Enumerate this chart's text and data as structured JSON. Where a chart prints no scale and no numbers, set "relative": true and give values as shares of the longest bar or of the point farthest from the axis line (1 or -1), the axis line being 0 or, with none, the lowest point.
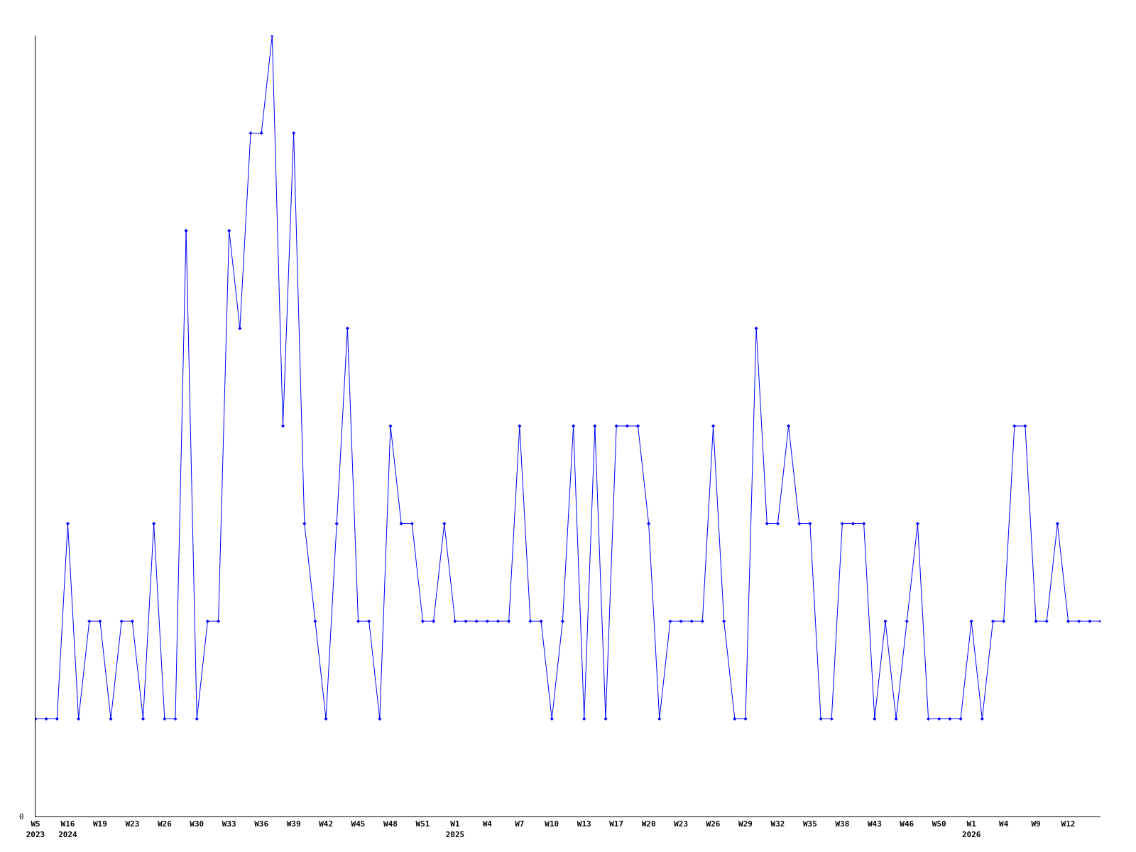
{
  "chart_data": {
    "type": "line",
    "relative": true,
    "color": "#0000ff",
    "marker": "diamond",
    "line_style": "solid",
    "grid": false,
    "legend": false,
    "annotations": [
      "0"
    ],
    "categories": [
      "W5\n2023",
      null,
      null,
      "W16\n2024",
      null,
      null,
      "W19",
      null,
      null,
      "W23",
      null,
      null,
      "W26",
      null,
      null,
      "W30",
      null,
      null,
      "W33",
      null,
      null,
      "W36",
      null,
      null,
      "W39",
      null,
      null,
      "W42",
      null,
      null,
      "W45",
      null,
      null,
      "W48",
      null,
      null,
      "W51",
      null,
      null,
      "W1\n2025",
      null,
      null,
      "W4",
      null,
      null,
      "W7",
      null,
      null,
      "W10",
      null,
      null,
      "W13",
      null,
      null,
      "W17",
      null,
      null,
      "W20",
      null,
      null,
      "W23",
      null,
      null,
      "W26",
      null,
      null,
      "W29",
      null,
      null,
      "W32",
      null,
      null,
      "W35",
      null,
      null,
      "W38",
      null,
      null,
      "W43",
      null,
      null,
      "W46",
      null,
      null,
      "W50",
      null,
      null,
      "W1\n2026",
      null,
      null,
      "W4",
      null,
      null,
      "W9",
      null,
      null,
      "W12",
      null,
      null,
      null
    ],
    "values": [
      0.125,
      0.125,
      0.125,
      0.375,
      0.125,
      0.25,
      0.25,
      0.125,
      0.25,
      0.25,
      0.125,
      0.375,
      0.125,
      0.125,
      0.75,
      0.125,
      0.25,
      0.25,
      0.75,
      0.625,
      0.875,
      0.875,
      1,
      0.5,
      0.875,
      0.375,
      0.25,
      0.125,
      0.375,
      0.625,
      0.25,
      0.25,
      0.125,
      0.5,
      0.375,
      0.375,
      0.25,
      0.25,
      0.375,
      0.25,
      0.25,
      0.25,
      0.25,
      0.25,
      0.25,
      0.5,
      0.25,
      0.25,
      0.125,
      0.25,
      0.5,
      0.125,
      0.5,
      0.125,
      0.5,
      0.5,
      0.5,
      0.375,
      0.125,
      0.25,
      0.25,
      0.25,
      0.25,
      0.5,
      0.25,
      0.125,
      0.125,
      0.625,
      0.375,
      0.375,
      0.5,
      0.375,
      0.375,
      0.125,
      0.125,
      0.375,
      0.375,
      0.375,
      0.125,
      0.25,
      0.125,
      0.25,
      0.375,
      0.125,
      0.125,
      0.125,
      0.125,
      0.25,
      0.125,
      0.25,
      0.25,
      0.5,
      0.5,
      0.25,
      0.25,
      0.375,
      0.25,
      0.25,
      0.25,
      0.25
    ]
  }
}
